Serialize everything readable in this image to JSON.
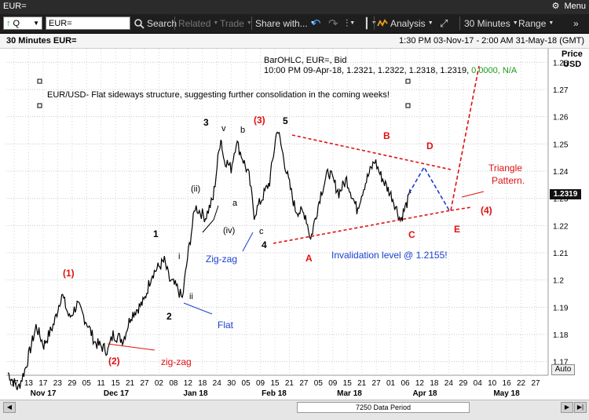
{
  "window": {
    "title": "EUR=",
    "settings_label": "Menu"
  },
  "toolbar": {
    "symbol_mode": "Q",
    "symbol_value": "EUR=",
    "search_label": "Search",
    "related_label": "Related",
    "trade_label": "Trade",
    "share_label": "Share with...",
    "analysis_label": "Analysis",
    "interval_label": "30 Minutes",
    "range_label": "Range"
  },
  "header": {
    "chart_title": "30 Minutes EUR=",
    "date_range": "1:30 PM 03-Nov-17 - 2:00 AM 31-May-18 (GMT)"
  },
  "info": {
    "line1": "BarOHLC, EUR=, Bid",
    "line2_prefix": "10:00 PM 09-Apr-18, 1.2321, 1.2322, 1.2318, 1.2319,",
    "line2_change": "0.0000, N/A"
  },
  "annotation": "EUR/USD-  Flat  sideways structure, suggesting further consolidation in the coming weeks!",
  "axis": {
    "price_title": "Price",
    "currency": "USD",
    "auto_label": "Auto",
    "current_price": "1.2319"
  },
  "scrollbar": {
    "label": "7250 Data Period"
  },
  "chart_data": {
    "type": "line",
    "y_ticks": [
      "1.28",
      "1.27",
      "1.26",
      "1.25",
      "1.24",
      "1.23",
      "1.22",
      "1.21",
      "1.2",
      "1.19",
      "1.18",
      "1.17"
    ],
    "ylim": [
      1.165,
      1.285
    ],
    "x_day_ticks": [
      "07",
      "13",
      "17",
      "23",
      "29",
      "05",
      "11",
      "15",
      "21",
      "27",
      "02",
      "08",
      "12",
      "18",
      "24",
      "30",
      "05",
      "09",
      "15",
      "21",
      "27",
      "05",
      "09",
      "15",
      "21",
      "27",
      "01",
      "06",
      "12",
      "18",
      "24",
      "29",
      "04",
      "10",
      "16",
      "22",
      "27"
    ],
    "x_month_ticks": [
      "Nov 17",
      "Dec 17",
      "Jan 18",
      "Feb 18",
      "Mar 18",
      "Apr 18",
      "May 18"
    ],
    "series": [
      {
        "x": [
          "2017-11-03",
          "2017-11-07",
          "2017-11-10",
          "2017-11-14",
          "2017-11-17",
          "2017-11-21",
          "2017-11-24",
          "2017-11-27",
          "2017-11-30",
          "2017-12-04",
          "2017-12-07",
          "2017-12-12",
          "2017-12-14",
          "2017-12-18",
          "2017-12-21",
          "2017-12-26",
          "2017-12-29",
          "2018-01-03",
          "2018-01-05",
          "2018-01-08",
          "2018-01-10",
          "2018-01-12",
          "2018-01-15",
          "2018-01-17",
          "2018-01-19",
          "2018-01-22",
          "2018-01-25",
          "2018-01-26",
          "2018-01-29",
          "2018-01-31",
          "2018-02-02",
          "2018-02-05",
          "2018-02-07",
          "2018-02-09",
          "2018-02-13",
          "2018-02-16",
          "2018-02-20",
          "2018-02-23",
          "2018-02-27",
          "2018-03-01",
          "2018-03-05",
          "2018-03-08",
          "2018-03-12",
          "2018-03-15",
          "2018-03-19",
          "2018-03-22",
          "2018-03-26",
          "2018-03-28",
          "2018-04-02",
          "2018-04-05",
          "2018-04-09"
        ],
        "y": [
          1.166,
          1.16,
          1.168,
          1.183,
          1.176,
          1.184,
          1.195,
          1.186,
          1.191,
          1.184,
          1.177,
          1.174,
          1.18,
          1.178,
          1.187,
          1.192,
          1.202,
          1.207,
          1.2,
          1.197,
          1.193,
          1.208,
          1.227,
          1.225,
          1.223,
          1.23,
          1.253,
          1.245,
          1.241,
          1.251,
          1.246,
          1.238,
          1.224,
          1.228,
          1.236,
          1.256,
          1.238,
          1.226,
          1.224,
          1.215,
          1.232,
          1.24,
          1.232,
          1.237,
          1.226,
          1.235,
          1.244,
          1.239,
          1.23,
          1.222,
          1.2319
        ]
      }
    ],
    "labels": {
      "w1": "(1)",
      "w2": "(2)",
      "w3": "(3)",
      "w4": "(4)",
      "m1": "1",
      "m2": "2",
      "m3": "3",
      "m4": "4",
      "m5": "5",
      "ii_small": "ii",
      "i_small": "i",
      "ii_paren": "(ii)",
      "iv_paren": "(iv)",
      "v": "v",
      "b": "b",
      "a": "a",
      "c": "c",
      "A": "A",
      "B": "B",
      "C": "C",
      "D": "D",
      "E": "E",
      "zig_zag_red": "zig-zag",
      "zig_zag_blue": "Zig-zag",
      "flat": "Flat",
      "triangle": "Triangle\nPattern.",
      "invalidation": "Invalidation level @ 1.2155!"
    }
  }
}
